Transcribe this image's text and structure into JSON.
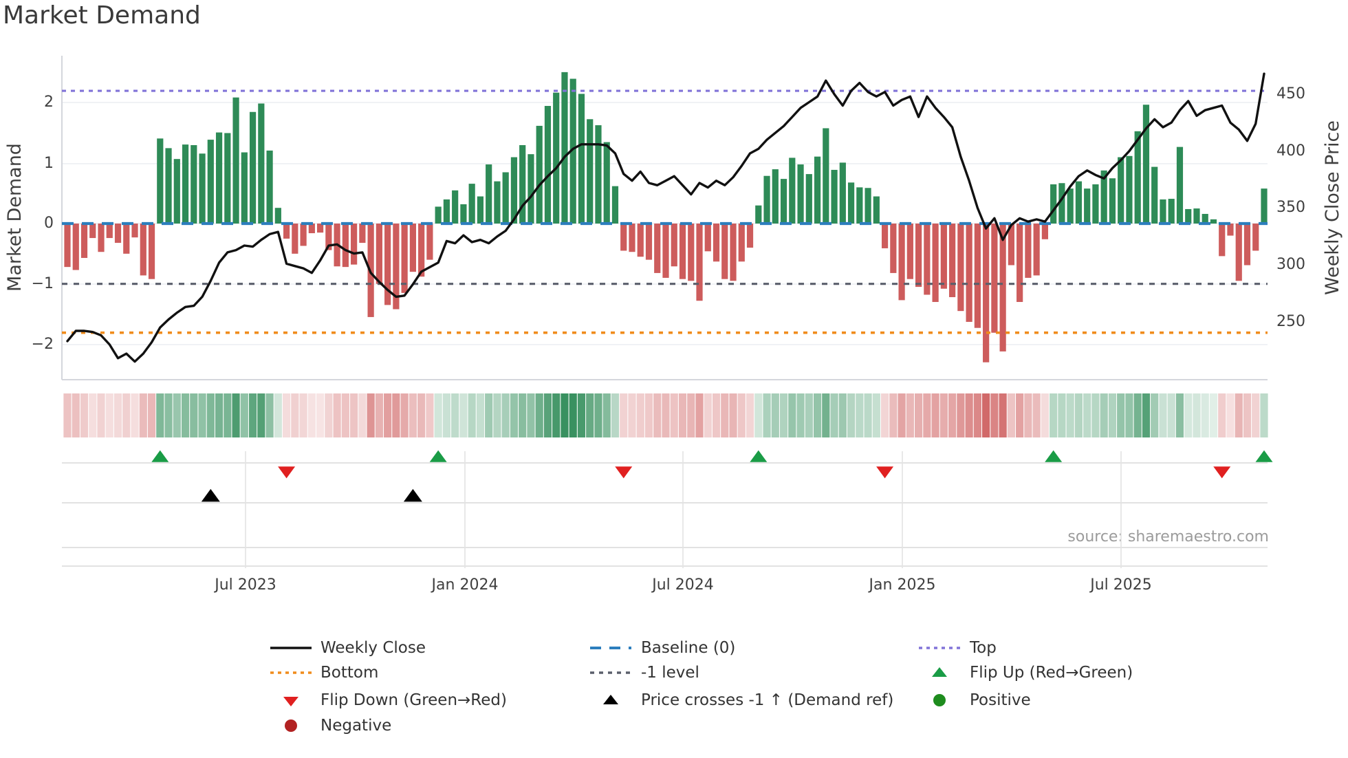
{
  "title": "Market Demand",
  "source": "source: sharemaestro.com",
  "axes": {
    "left": {
      "label": "Market Demand",
      "ticks": [
        "2",
        "1",
        "0",
        "−1",
        "−2"
      ]
    },
    "right": {
      "label": "Weekly Close Price",
      "ticks": [
        "450",
        "400",
        "350",
        "300",
        "250"
      ]
    },
    "x": {
      "ticks": [
        "Jul 2023",
        "Jan 2024",
        "Jul 2024",
        "Jan 2025",
        "Jul 2025"
      ]
    }
  },
  "legend": {
    "weekly_close": "Weekly Close",
    "baseline": "Baseline (0)",
    "top": "Top",
    "bottom": "Bottom",
    "minus1": "-1 level",
    "flip_up": "Flip Up (Red→Green)",
    "flip_down": "Flip Down (Green→Red)",
    "price_cross": "Price crosses -1 ↑ (Demand ref)",
    "positive": "Positive",
    "negative": "Negative"
  },
  "colors": {
    "positive_bar": "#2e8b57",
    "negative_bar": "#cd5c5c",
    "price_line": "#111111",
    "baseline_line": "#2d7ebd",
    "top_line": "#8173d8",
    "bottom_line": "#f08c1c",
    "minus1_line": "#5a5f6b",
    "flip_up_marker": "#1a9c46",
    "flip_down_marker": "#e02020",
    "price_cross_marker": "#000000",
    "positive_dot": "#1e8c1e",
    "negative_dot": "#b22222",
    "grid": "#ebedf2",
    "panel_grid": "#d9d9d9"
  },
  "chart_data": {
    "type": "combo",
    "title": "Market Demand",
    "xlabel_ticks": [
      "Jul 2023",
      "Jan 2024",
      "Jul 2024",
      "Jan 2025",
      "Jul 2025"
    ],
    "ylabel_left": "Market Demand",
    "ylabel_right": "Weekly Close Price",
    "ylim_left": [
      -2.6,
      2.78
    ],
    "ylim_right": [
      199,
      484
    ],
    "grid": true,
    "legend_position": "bottom",
    "series": [
      {
        "name": "Market Demand",
        "type": "bar",
        "axis": "left",
        "values": [
          -0.72,
          -0.77,
          -0.57,
          -0.24,
          -0.47,
          -0.24,
          -0.32,
          -0.5,
          -0.23,
          -0.86,
          -0.92,
          1.41,
          1.25,
          1.07,
          1.31,
          1.3,
          1.16,
          1.39,
          1.51,
          1.5,
          2.09,
          1.18,
          1.85,
          1.99,
          1.21,
          0.26,
          -0.25,
          -0.5,
          -0.37,
          -0.16,
          -0.15,
          -0.44,
          -0.71,
          -0.72,
          -0.68,
          -0.32,
          -1.55,
          -1.0,
          -1.35,
          -1.42,
          -1.15,
          -0.8,
          -0.88,
          -0.6,
          0.28,
          0.4,
          0.55,
          0.32,
          0.66,
          0.45,
          0.98,
          0.7,
          0.85,
          1.1,
          1.3,
          1.15,
          1.62,
          1.95,
          2.17,
          2.51,
          2.4,
          2.15,
          1.73,
          1.63,
          1.35,
          0.62,
          -0.45,
          -0.47,
          -0.55,
          -0.6,
          -0.82,
          -0.9,
          -0.71,
          -0.92,
          -0.95,
          -1.28,
          -0.46,
          -0.63,
          -0.92,
          -0.95,
          -0.63,
          -0.4,
          0.3,
          0.79,
          0.9,
          0.74,
          1.09,
          0.98,
          0.82,
          1.11,
          1.58,
          0.89,
          1.01,
          0.68,
          0.6,
          0.59,
          0.45,
          -0.41,
          -0.82,
          -1.27,
          -0.92,
          -1.05,
          -1.18,
          -1.3,
          -1.08,
          -1.22,
          -1.45,
          -1.63,
          -1.73,
          -2.3,
          -1.81,
          -2.12,
          -0.69,
          -1.3,
          -0.9,
          -0.86,
          -0.26,
          0.65,
          0.67,
          0.58,
          0.7,
          0.58,
          0.65,
          0.88,
          0.75,
          1.1,
          1.12,
          1.53,
          1.97,
          0.94,
          0.4,
          0.41,
          1.27,
          0.24,
          0.25,
          0.16,
          0.07,
          -0.54,
          -0.2,
          -0.95,
          -0.69,
          -0.45,
          0.58
        ]
      },
      {
        "name": "Weekly Close",
        "type": "line",
        "axis": "right",
        "values": [
          233,
          242,
          242,
          241,
          238,
          230,
          218,
          222,
          215,
          222,
          232,
          245,
          252,
          258,
          263,
          264,
          272,
          286,
          302,
          311,
          313,
          317,
          316,
          322,
          327,
          329,
          301,
          299,
          297,
          293,
          304,
          317,
          318,
          313,
          310,
          311,
          293,
          285,
          278,
          272,
          273,
          283,
          294,
          298,
          302,
          321,
          319,
          326,
          320,
          322,
          319,
          325,
          330,
          340,
          352,
          360,
          370,
          378,
          385,
          395,
          402,
          406,
          406,
          406,
          405,
          398,
          380,
          374,
          382,
          372,
          370,
          374,
          378,
          370,
          362,
          372,
          368,
          374,
          370,
          377,
          387,
          398,
          402,
          410,
          416,
          422,
          430,
          438,
          443,
          448,
          462,
          450,
          440,
          453,
          460,
          452,
          448,
          452,
          440,
          445,
          448,
          430,
          448,
          438,
          430,
          421,
          395,
          374,
          350,
          332,
          341,
          322,
          335,
          341,
          338,
          340,
          338,
          348,
          358,
          369,
          378,
          383,
          379,
          376,
          385,
          392,
          400,
          410,
          420,
          428,
          421,
          425,
          436,
          444,
          431,
          436,
          438,
          440,
          425,
          419,
          409,
          424,
          468
        ]
      }
    ],
    "reference_lines": [
      {
        "name": "Top",
        "axis": "left",
        "value": 2.2,
        "style": "dotted"
      },
      {
        "name": "Baseline (0)",
        "axis": "left",
        "value": 0,
        "style": "dashed"
      },
      {
        "name": "-1 level",
        "axis": "left",
        "value": -1,
        "style": "dashed"
      },
      {
        "name": "Bottom",
        "axis": "left",
        "value": -1.81,
        "style": "dotted"
      }
    ],
    "markers": {
      "flip_up_weeks": [
        11,
        44,
        82,
        117,
        142
      ],
      "flip_down_weeks": [
        26,
        66,
        97,
        137
      ],
      "price_cross_up_weeks": [
        17,
        41
      ]
    },
    "heat_strip": "red/green intensity strip derived from weekly Market Demand values"
  }
}
